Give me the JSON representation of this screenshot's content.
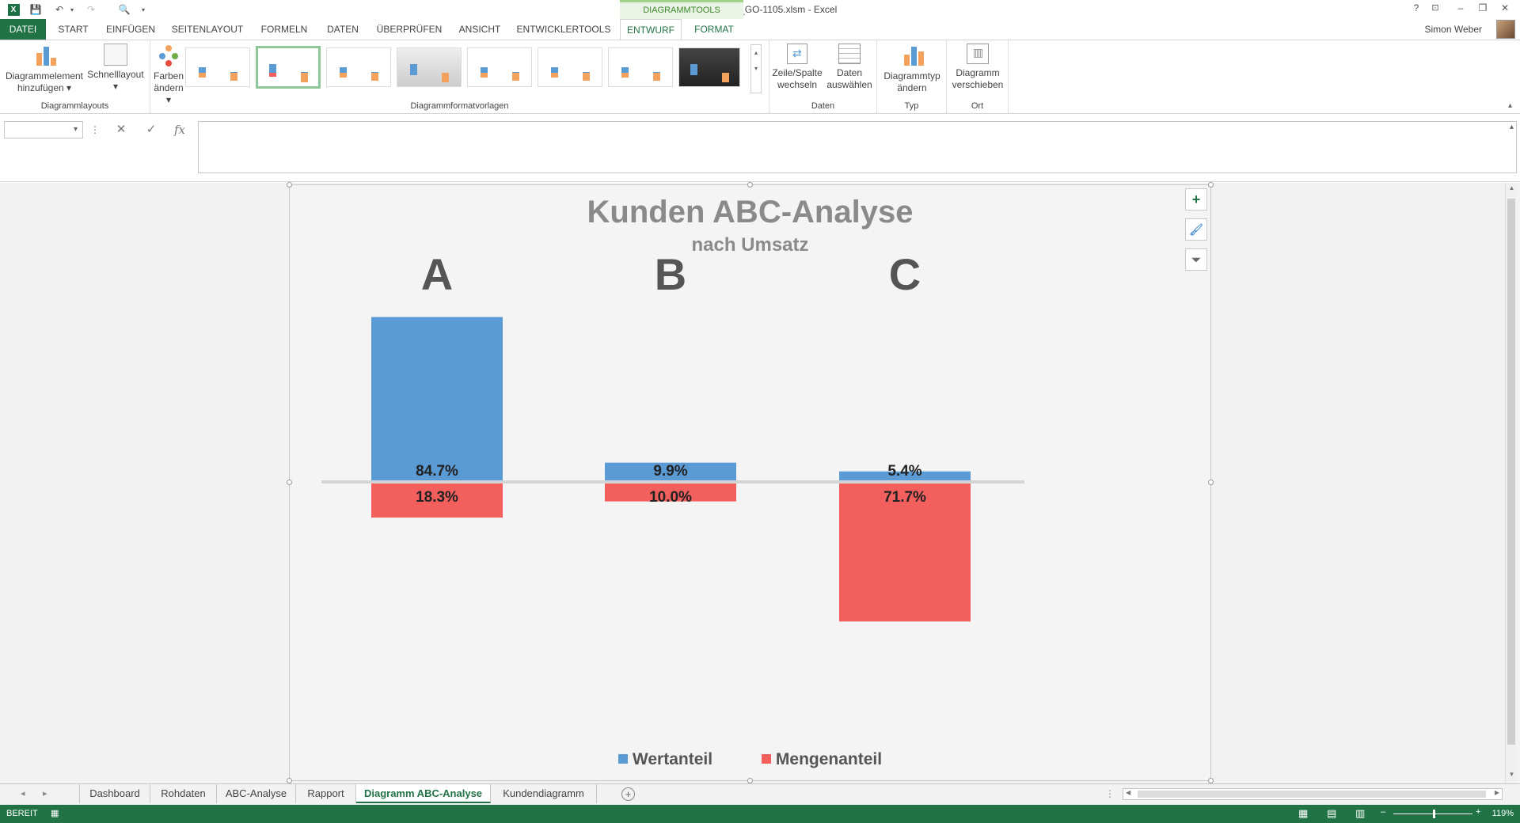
{
  "window": {
    "title": "ABC-Analyse_GO-1105.xlsm - Excel",
    "contextual_tab_group": "DIAGRAMMTOOLS",
    "user_name": "Simon Weber",
    "help": "?",
    "minimize": "–",
    "restore": "❐",
    "close": "✕"
  },
  "tabs": [
    {
      "label": "DATEI"
    },
    {
      "label": "START"
    },
    {
      "label": "EINFÜGEN"
    },
    {
      "label": "SEITENLAYOUT"
    },
    {
      "label": "FORMELN"
    },
    {
      "label": "DATEN"
    },
    {
      "label": "ÜBERPRÜFEN"
    },
    {
      "label": "ANSICHT"
    },
    {
      "label": "ENTWICKLERTOOLS"
    },
    {
      "label": "ENTWURF"
    },
    {
      "label": "FORMAT"
    }
  ],
  "ribbon": {
    "diagrammlayouts": {
      "add_element_line1": "Diagrammelement",
      "add_element_line2": "hinzufügen ▾",
      "quicklayout_line1": "Schnelllayout",
      "quicklayout_line2": "▾",
      "group_label": "Diagrammlayouts"
    },
    "colors_line1": "Farben",
    "colors_line2": "ändern ▾",
    "styles_group_label": "Diagrammformatvorlagen",
    "daten": {
      "switch_line1": "Zeile/Spalte",
      "switch_line2": "wechseln",
      "select_line1": "Daten",
      "select_line2": "auswählen",
      "group_label": "Daten"
    },
    "typ": {
      "change_line1": "Diagrammtyp",
      "change_line2": "ändern",
      "group_label": "Typ"
    },
    "ort": {
      "move_line1": "Diagramm",
      "move_line2": "verschieben",
      "group_label": "Ort"
    }
  },
  "formula_bar": {
    "name_box": "",
    "cancel": "✕",
    "enter": "✓",
    "fx": "fx",
    "formula": ""
  },
  "chart_data": {
    "type": "bar",
    "title": "Kunden ABC-Analyse",
    "subtitle": "nach Umsatz",
    "categories": [
      "A",
      "B",
      "C"
    ],
    "series": [
      {
        "name": "Wertanteil",
        "values": [
          84.7,
          9.9,
          5.4
        ],
        "labels": [
          "84.7%",
          "9.9%",
          "5.4%"
        ],
        "color": "#5b9bd5",
        "direction": "up"
      },
      {
        "name": "Mengenanteil",
        "values": [
          18.3,
          10.0,
          71.7
        ],
        "labels": [
          "18.3%",
          "10.0%",
          "71.7%"
        ],
        "color": "#f25f5c",
        "direction": "down"
      }
    ],
    "axis_color": "#d4d4d4",
    "legend_position": "bottom",
    "grid": false
  },
  "sheet_tabs": [
    {
      "label": "Dashboard"
    },
    {
      "label": "Rohdaten"
    },
    {
      "label": "ABC-Analyse"
    },
    {
      "label": "Rapport"
    },
    {
      "label": "Diagramm ABC-Analyse",
      "active": true
    },
    {
      "label": "Kundendiagramm"
    }
  ],
  "status": {
    "ready": "BEREIT",
    "zoom": "119%"
  },
  "colors": {
    "excel_green": "#217346",
    "wertanteil": "#5b9bd5",
    "mengenanteil": "#f25f5c"
  }
}
